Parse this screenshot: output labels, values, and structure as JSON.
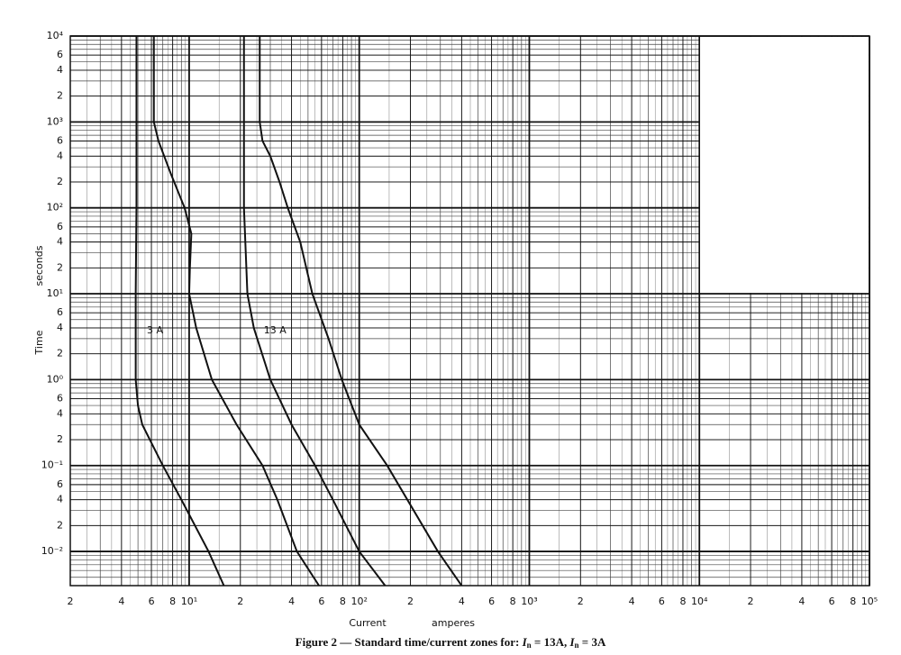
{
  "chart_data": {
    "type": "line",
    "log_x": true,
    "log_y": true,
    "grid": true,
    "color": "#111111",
    "x_label": "Current",
    "x_unit": "amperes",
    "y_label": "Time",
    "y_unit": "seconds",
    "caption": [
      "Figure 2 — Standard time/current zones for: ",
      "I",
      "n",
      " = 13A, ",
      "I",
      "n",
      " = 3A"
    ],
    "xlim": [
      2,
      100000
    ],
    "ylim": [
      0.004,
      10000
    ],
    "xticks": [
      2,
      4,
      6,
      8,
      {
        "value": 10,
        "label": "10¹"
      },
      {
        "value": 20,
        "label": "2"
      },
      {
        "value": 40,
        "label": "4"
      },
      {
        "value": 60,
        "label": "6"
      },
      {
        "value": 80,
        "label": "8"
      },
      {
        "value": 100,
        "label": "10²"
      },
      {
        "value": 200,
        "label": "2"
      },
      {
        "value": 400,
        "label": "4"
      },
      {
        "value": 600,
        "label": "6"
      },
      {
        "value": 800,
        "label": "8"
      },
      {
        "value": 1000,
        "label": "10³"
      },
      {
        "value": 2000,
        "label": "2"
      },
      {
        "value": 4000,
        "label": "4"
      },
      {
        "value": 6000,
        "label": "6"
      },
      {
        "value": 8000,
        "label": "8"
      },
      {
        "value": 10000,
        "label": "10⁴"
      },
      {
        "value": 20000,
        "label": "2"
      },
      {
        "value": 40000,
        "label": "4"
      },
      {
        "value": 60000,
        "label": "6"
      },
      {
        "value": 80000,
        "label": "8"
      },
      {
        "value": 100000,
        "label": "10⁵"
      }
    ],
    "yticks": [
      {
        "value": 10000,
        "label": "10⁴"
      },
      {
        "value": 6000,
        "label": "6"
      },
      {
        "value": 4000,
        "label": "4"
      },
      {
        "value": 2000,
        "label": "2"
      },
      {
        "value": 1000,
        "label": "10³"
      },
      {
        "value": 600,
        "label": "6"
      },
      {
        "value": 400,
        "label": "4"
      },
      {
        "value": 200,
        "label": "2"
      },
      {
        "value": 100,
        "label": "10²"
      },
      {
        "value": 60,
        "label": "6"
      },
      {
        "value": 40,
        "label": "4"
      },
      {
        "value": 20,
        "label": "2"
      },
      {
        "value": 10,
        "label": "10¹"
      },
      6,
      4,
      2,
      {
        "value": 1,
        "label": "10⁰"
      },
      {
        "value": 0.6,
        "label": "6"
      },
      {
        "value": 0.4,
        "label": "4"
      },
      {
        "value": 0.2,
        "label": "2"
      },
      {
        "value": 0.1,
        "label": "10⁻¹"
      },
      {
        "value": 0.06,
        "label": "6"
      },
      {
        "value": 0.04,
        "label": "4"
      },
      {
        "value": 0.02,
        "label": "2"
      },
      {
        "value": 0.01,
        "label": "10⁻²"
      }
    ],
    "series": [
      {
        "color": "#111111",
        "x": [
          4.9,
          4.9,
          4.9,
          4.85,
          4.85,
          5.0,
          5.3,
          7,
          9,
          13,
          16
        ],
        "values": [
          10000,
          1000,
          100,
          10,
          1,
          0.5,
          0.3,
          0.1,
          0.04,
          0.01,
          0.004
        ]
      },
      {
        "color": "#111111",
        "x": [
          6.2,
          6.2,
          6.6,
          7.8,
          9.4,
          10.3,
          10.1,
          10,
          11,
          13.6,
          19,
          27,
          33,
          43,
          58
        ],
        "values": [
          10000,
          1000,
          600,
          250,
          100,
          50,
          20,
          10,
          4,
          1,
          0.3,
          0.1,
          0.04,
          0.01,
          0.004
        ]
      },
      {
        "color": "#111111",
        "x": [
          21,
          21,
          21,
          22,
          24,
          30,
          40,
          55,
          70,
          100,
          142
        ],
        "values": [
          10000,
          1000,
          100,
          10,
          4,
          1,
          0.3,
          0.1,
          0.04,
          0.01,
          0.004
        ]
      },
      {
        "color": "#111111",
        "x": [
          26,
          26,
          27,
          30,
          34,
          38,
          45,
          53,
          66,
          79,
          100,
          146,
          290,
          400
        ],
        "values": [
          10000,
          1000,
          600,
          400,
          200,
          100,
          40,
          10,
          3,
          1,
          0.3,
          0.1,
          0.01,
          0.004
        ]
      }
    ],
    "annotations": [
      {
        "text": "3 A",
        "x": 6.3,
        "y": 3.7
      },
      {
        "text": "13 A",
        "x": 32,
        "y": 3.7
      }
    ]
  }
}
